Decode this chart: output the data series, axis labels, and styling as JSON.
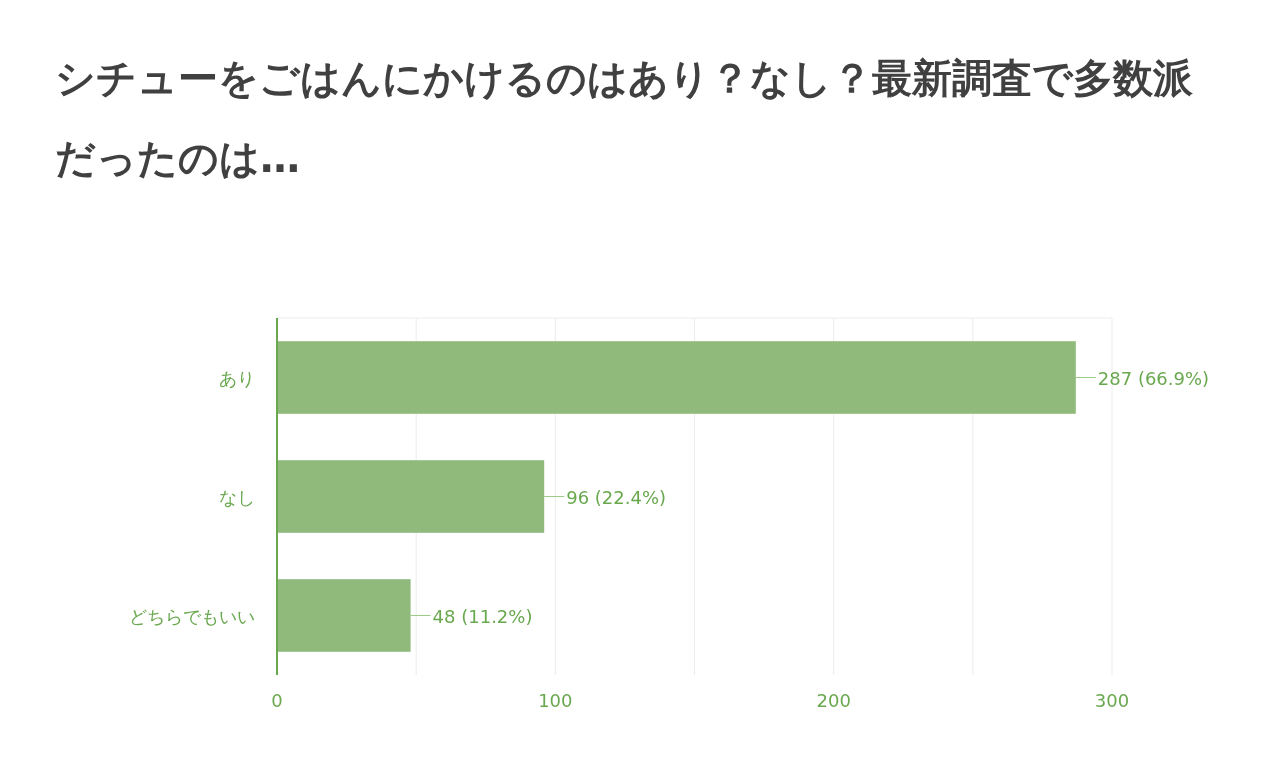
{
  "chart_data": {
    "type": "bar",
    "orientation": "horizontal",
    "title": "シチューをごはんにかけるのはあり？なし？最新調査で多数派だったのは…",
    "categories": [
      "あり",
      "なし",
      "どちらでもいい"
    ],
    "values": [
      287,
      96,
      48
    ],
    "value_labels": [
      "287 (66.9%)",
      "96 (22.4%)",
      "48 (11.2%)"
    ],
    "color": "#8fba7b",
    "xlim": [
      0,
      300
    ],
    "xticks": [
      0,
      {
        "value": 50,
        "label": null
      },
      100,
      {
        "value": 150,
        "label": null
      },
      200,
      {
        "value": 250,
        "label": null
      },
      300
    ],
    "grid": "x"
  }
}
